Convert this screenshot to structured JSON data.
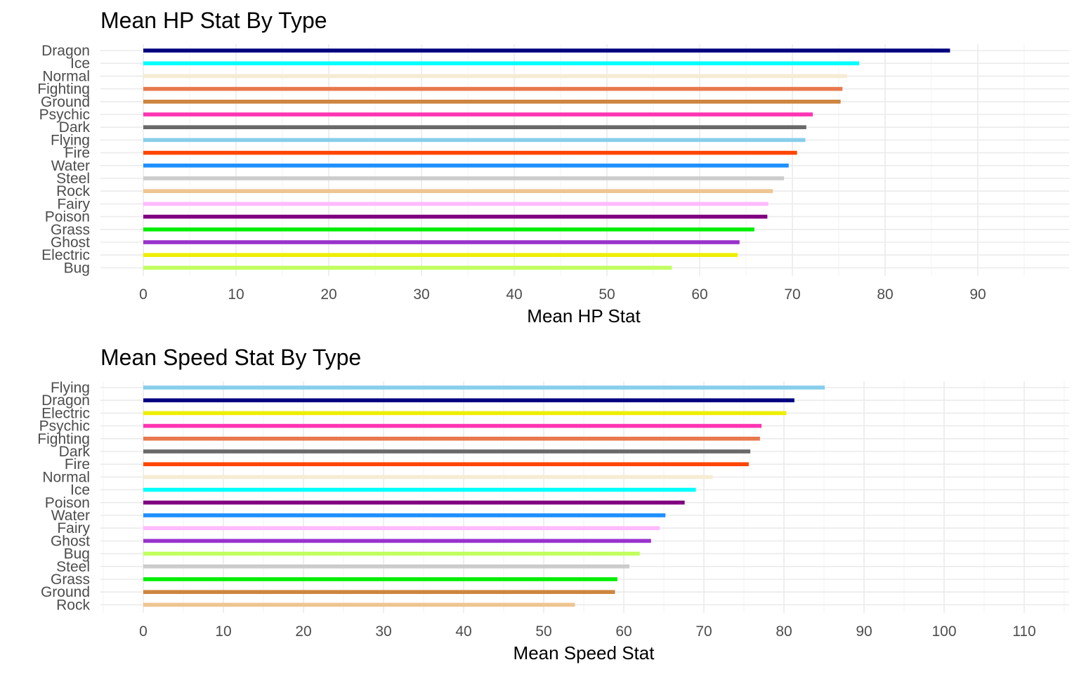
{
  "chart_data": [
    {
      "type": "bar",
      "orientation": "horizontal",
      "title": "Mean HP Stat By Type",
      "xlabel": "Mean HP Stat",
      "ylabel": "",
      "xlim": [
        -4.5,
        100
      ],
      "xticks": [
        0,
        10,
        20,
        30,
        40,
        50,
        60,
        70,
        80,
        90
      ],
      "grid": true,
      "categories": [
        "Dragon",
        "Ice",
        "Normal",
        "Fighting",
        "Ground",
        "Psychic",
        "Dark",
        "Flying",
        "Fire",
        "Water",
        "Steel",
        "Rock",
        "Fairy",
        "Poison",
        "Grass",
        "Ghost",
        "Electric",
        "Bug"
      ],
      "values": [
        87.0,
        77.2,
        75.9,
        75.4,
        75.2,
        72.2,
        71.5,
        71.4,
        70.5,
        69.6,
        69.1,
        67.9,
        67.4,
        67.3,
        65.9,
        64.3,
        64.1,
        57.0
      ],
      "colors": [
        "#000080",
        "#00ffff",
        "#f5ecd3",
        "#e8784d",
        "#cd853f",
        "#ff34b3",
        "#696969",
        "#87ceeb",
        "#ff4500",
        "#1e90ff",
        "#cccccc",
        "#eec591",
        "#ffbbff",
        "#800080",
        "#00ee00",
        "#9932cc",
        "#eeee00",
        "#c0ff5e"
      ]
    },
    {
      "type": "bar",
      "orientation": "horizontal",
      "title": "Mean Speed Stat By Type",
      "xlabel": "Mean Speed Stat",
      "ylabel": "",
      "xlim": [
        -5,
        115
      ],
      "xticks": [
        0,
        10,
        20,
        30,
        40,
        50,
        60,
        70,
        80,
        90,
        100,
        110
      ],
      "grid": true,
      "categories": [
        "Flying",
        "Dragon",
        "Electric",
        "Psychic",
        "Fighting",
        "Dark",
        "Fire",
        "Normal",
        "Ice",
        "Poison",
        "Water",
        "Fairy",
        "Ghost",
        "Bug",
        "Steel",
        "Grass",
        "Ground",
        "Rock"
      ],
      "values": [
        85.1,
        81.3,
        80.3,
        77.2,
        77.0,
        75.8,
        75.6,
        71.1,
        69.0,
        67.6,
        65.2,
        64.5,
        63.4,
        62.0,
        60.7,
        59.2,
        58.9,
        53.9
      ],
      "colors": [
        "#87ceeb",
        "#000080",
        "#eeee00",
        "#ff34b3",
        "#e8784d",
        "#696969",
        "#ff4500",
        "#f5ecd3",
        "#00ffff",
        "#800080",
        "#1e90ff",
        "#ffbbff",
        "#9932cc",
        "#c0ff5e",
        "#cccccc",
        "#00ee00",
        "#cd853f",
        "#eec591"
      ]
    }
  ]
}
